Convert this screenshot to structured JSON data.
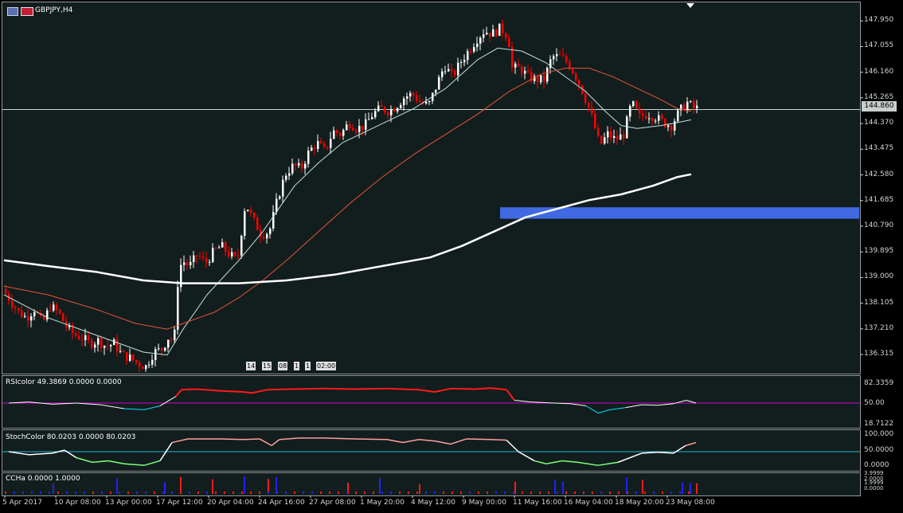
{
  "window": {
    "symbol_title": "GBPJPY,H4",
    "icon": "chart-window-icon",
    "flag_icon": "currency-flag-icon"
  },
  "main_pane": {
    "current_price": "144.860",
    "price_ticks": [
      "147.950",
      "147.055",
      "146.160",
      "145.265",
      "144.370",
      "143.475",
      "142.580",
      "141.685",
      "140.790",
      "139.895",
      "139.000",
      "138.105",
      "137.210",
      "136.315"
    ],
    "history_tags": [
      "14",
      "15",
      "08",
      "1",
      "1",
      "02:00"
    ]
  },
  "indicators": [
    {
      "label": "RSIcolor 49.3869 0.0000 0.0000",
      "ticks": [
        "82.3359",
        "50.00",
        "18.7122"
      ]
    },
    {
      "label": "StochColor 80.0203 0.0000 80.0203",
      "ticks": [
        "100.000",
        "50.0000",
        "0.0000"
      ]
    },
    {
      "label": "CCHa 0.0000 1.0000",
      "ticks": [
        "3.9999",
        "2.0000",
        "1.9999",
        "0.0000"
      ]
    }
  ],
  "time_axis": [
    "5 Apr 2017",
    "10 Apr 08:00",
    "13 Apr 00:00",
    "17 Apr 12:00",
    "20 Apr 04:00",
    "24 Apr 16:00",
    "27 Apr 08:00",
    "1 May 20:00",
    "4 May 12:00",
    "9 May 00:00",
    "11 May 16:00",
    "16 May 04:00",
    "18 May 20:00",
    "23 May 08:00"
  ],
  "colors": {
    "background": "#121e1d",
    "bull_candle": "#ffffff",
    "bear_candle": "#ff0000",
    "ma_fast": "#bfe3e0",
    "ma_mid": "#e5533a",
    "ma_slow": "#ffffff",
    "zone": "#4169e1",
    "level_line": "#c9d6d4",
    "rsi_up": "#ff1a1a",
    "rsi_mid": "#ffffff",
    "rsi_down": "#00e5ff",
    "rsi_level": "#d400d4",
    "stoch_up": "#ff9da0",
    "stoch_mid": "#ffffff",
    "stoch_down": "#7cff7c",
    "stoch_level": "#1fb6d4",
    "cc_bull": "#2222ff",
    "cc_bear": "#ff1a1a"
  },
  "chart_data": {
    "type": "candlestick",
    "symbol": "GBPJPY",
    "timeframe": "H4",
    "ylim": [
      135.9,
      148.4
    ],
    "close_path": [
      [
        0,
        138.6
      ],
      [
        10,
        138.2
      ],
      [
        20,
        137.8
      ],
      [
        30,
        137.6
      ],
      [
        40,
        137.9
      ],
      [
        50,
        137.4
      ],
      [
        60,
        138.0
      ],
      [
        70,
        137.8
      ],
      [
        80,
        137.3
      ],
      [
        90,
        137.0
      ],
      [
        100,
        136.9
      ],
      [
        110,
        136.7
      ],
      [
        120,
        136.8
      ],
      [
        130,
        136.6
      ],
      [
        140,
        136.7
      ],
      [
        150,
        136.3
      ],
      [
        160,
        136.2
      ],
      [
        170,
        136.0
      ],
      [
        180,
        135.9
      ],
      [
        190,
        136.4
      ],
      [
        200,
        136.5
      ],
      [
        210,
        137.0
      ],
      [
        215,
        136.6
      ],
      [
        220,
        138.8
      ],
      [
        225,
        139.6
      ],
      [
        235,
        139.4
      ],
      [
        245,
        139.8
      ],
      [
        255,
        139.5
      ],
      [
        265,
        139.9
      ],
      [
        275,
        140.1
      ],
      [
        285,
        139.8
      ],
      [
        295,
        139.6
      ],
      [
        305,
        141.6
      ],
      [
        315,
        141.0
      ],
      [
        325,
        140.5
      ],
      [
        335,
        140.6
      ],
      [
        345,
        141.7
      ],
      [
        355,
        142.6
      ],
      [
        365,
        142.9
      ],
      [
        375,
        142.8
      ],
      [
        385,
        143.4
      ],
      [
        395,
        143.7
      ],
      [
        405,
        143.4
      ],
      [
        415,
        144.1
      ],
      [
        425,
        144.0
      ],
      [
        435,
        144.4
      ],
      [
        445,
        144.2
      ],
      [
        455,
        144.3
      ],
      [
        465,
        144.7
      ],
      [
        475,
        144.9
      ],
      [
        485,
        144.8
      ],
      [
        495,
        145.0
      ],
      [
        505,
        145.3
      ],
      [
        515,
        145.4
      ],
      [
        525,
        145.1
      ],
      [
        535,
        145.0
      ],
      [
        545,
        145.7
      ],
      [
        555,
        146.4
      ],
      [
        565,
        146.0
      ],
      [
        575,
        146.5
      ],
      [
        585,
        146.9
      ],
      [
        595,
        147.3
      ],
      [
        605,
        147.6
      ],
      [
        615,
        147.5
      ],
      [
        625,
        147.7
      ],
      [
        635,
        147.4
      ],
      [
        640,
        146.3
      ],
      [
        650,
        146.3
      ],
      [
        660,
        146.0
      ],
      [
        670,
        145.9
      ],
      [
        680,
        145.9
      ],
      [
        690,
        146.7
      ],
      [
        700,
        146.7
      ],
      [
        710,
        146.5
      ],
      [
        720,
        146.0
      ],
      [
        730,
        145.4
      ],
      [
        740,
        144.6
      ],
      [
        750,
        143.6
      ],
      [
        760,
        144.0
      ],
      [
        770,
        143.8
      ],
      [
        780,
        144.0
      ],
      [
        790,
        145.1
      ],
      [
        800,
        144.6
      ],
      [
        810,
        144.7
      ],
      [
        820,
        144.6
      ],
      [
        830,
        144.4
      ],
      [
        840,
        144.3
      ],
      [
        850,
        144.8
      ],
      [
        860,
        145.1
      ],
      [
        868,
        144.9
      ]
    ],
    "moving_averages": [
      {
        "name": "fast",
        "points": [
          [
            5,
            138.4
          ],
          [
            60,
            137.6
          ],
          [
            120,
            137.0
          ],
          [
            180,
            136.4
          ],
          [
            210,
            136.3
          ],
          [
            230,
            137.2
          ],
          [
            260,
            138.4
          ],
          [
            300,
            139.6
          ],
          [
            330,
            140.6
          ],
          [
            370,
            142.2
          ],
          [
            400,
            143.0
          ],
          [
            430,
            143.7
          ],
          [
            460,
            144.1
          ],
          [
            490,
            144.5
          ],
          [
            520,
            144.9
          ],
          [
            560,
            145.6
          ],
          [
            600,
            146.6
          ],
          [
            625,
            147.0
          ],
          [
            655,
            146.9
          ],
          [
            685,
            146.5
          ],
          [
            710,
            146.0
          ],
          [
            735,
            145.5
          ],
          [
            760,
            144.8
          ],
          [
            780,
            144.3
          ],
          [
            800,
            144.2
          ],
          [
            830,
            144.3
          ],
          [
            850,
            144.4
          ],
          [
            868,
            144.5
          ]
        ]
      },
      {
        "name": "mid",
        "points": [
          [
            5,
            138.7
          ],
          [
            60,
            138.4
          ],
          [
            120,
            137.9
          ],
          [
            170,
            137.4
          ],
          [
            210,
            137.2
          ],
          [
            240,
            137.5
          ],
          [
            270,
            137.8
          ],
          [
            300,
            138.3
          ],
          [
            330,
            138.9
          ],
          [
            360,
            139.6
          ],
          [
            400,
            140.6
          ],
          [
            440,
            141.6
          ],
          [
            480,
            142.5
          ],
          [
            520,
            143.3
          ],
          [
            560,
            144.0
          ],
          [
            600,
            144.7
          ],
          [
            640,
            145.5
          ],
          [
            680,
            146.1
          ],
          [
            710,
            146.3
          ],
          [
            740,
            146.3
          ],
          [
            770,
            146.0
          ],
          [
            800,
            145.6
          ],
          [
            830,
            145.2
          ],
          [
            850,
            144.9
          ],
          [
            868,
            144.8
          ]
        ]
      },
      {
        "name": "slow",
        "points": [
          [
            5,
            139.6
          ],
          [
            60,
            139.4
          ],
          [
            120,
            139.2
          ],
          [
            180,
            138.9
          ],
          [
            230,
            138.8
          ],
          [
            300,
            138.8
          ],
          [
            360,
            138.9
          ],
          [
            420,
            139.1
          ],
          [
            480,
            139.4
          ],
          [
            540,
            139.7
          ],
          [
            580,
            140.1
          ],
          [
            620,
            140.6
          ],
          [
            660,
            141.1
          ],
          [
            700,
            141.4
          ],
          [
            740,
            141.7
          ],
          [
            780,
            141.9
          ],
          [
            820,
            142.2
          ],
          [
            850,
            142.5
          ],
          [
            868,
            142.6
          ]
        ]
      }
    ],
    "zone": {
      "from_x": 628,
      "low": 141.05,
      "high": 141.45
    },
    "current_level": 144.86,
    "rsi": [
      [
        5,
        50
      ],
      [
        30,
        52
      ],
      [
        60,
        48
      ],
      [
        90,
        50
      ],
      [
        120,
        47
      ],
      [
        150,
        40
      ],
      [
        175,
        38
      ],
      [
        195,
        45
      ],
      [
        215,
        62
      ],
      [
        222,
        74
      ],
      [
        240,
        75
      ],
      [
        270,
        72
      ],
      [
        300,
        70
      ],
      [
        310,
        68
      ],
      [
        330,
        74
      ],
      [
        360,
        75
      ],
      [
        400,
        76
      ],
      [
        440,
        75
      ],
      [
        480,
        76
      ],
      [
        520,
        74
      ],
      [
        540,
        70
      ],
      [
        560,
        76
      ],
      [
        590,
        75
      ],
      [
        610,
        77
      ],
      [
        630,
        74
      ],
      [
        640,
        55
      ],
      [
        660,
        52
      ],
      [
        690,
        50
      ],
      [
        710,
        49
      ],
      [
        730,
        45
      ],
      [
        745,
        32
      ],
      [
        760,
        38
      ],
      [
        780,
        42
      ],
      [
        800,
        47
      ],
      [
        820,
        46
      ],
      [
        840,
        49
      ],
      [
        856,
        55
      ],
      [
        868,
        50
      ]
    ],
    "stoch": [
      [
        5,
        50
      ],
      [
        30,
        40
      ],
      [
        60,
        45
      ],
      [
        75,
        55
      ],
      [
        90,
        30
      ],
      [
        110,
        15
      ],
      [
        130,
        20
      ],
      [
        150,
        10
      ],
      [
        175,
        5
      ],
      [
        195,
        20
      ],
      [
        210,
        80
      ],
      [
        230,
        92
      ],
      [
        270,
        92
      ],
      [
        300,
        90
      ],
      [
        320,
        92
      ],
      [
        335,
        70
      ],
      [
        345,
        90
      ],
      [
        370,
        95
      ],
      [
        400,
        95
      ],
      [
        440,
        92
      ],
      [
        480,
        90
      ],
      [
        500,
        80
      ],
      [
        520,
        90
      ],
      [
        540,
        85
      ],
      [
        560,
        75
      ],
      [
        580,
        92
      ],
      [
        610,
        90
      ],
      [
        630,
        88
      ],
      [
        645,
        50
      ],
      [
        665,
        20
      ],
      [
        680,
        10
      ],
      [
        700,
        20
      ],
      [
        720,
        15
      ],
      [
        745,
        5
      ],
      [
        770,
        15
      ],
      [
        800,
        45
      ],
      [
        820,
        48
      ],
      [
        840,
        45
      ],
      [
        855,
        70
      ],
      [
        868,
        80
      ]
    ],
    "cc_bars": [
      [
        60,
        "bull"
      ],
      [
        140,
        "bull"
      ],
      [
        200,
        "bull"
      ],
      [
        220,
        "bear"
      ],
      [
        260,
        "bear"
      ],
      [
        300,
        "bull"
      ],
      [
        330,
        "bear"
      ],
      [
        340,
        "bull"
      ],
      [
        430,
        "bear"
      ],
      [
        470,
        "bull"
      ],
      [
        520,
        "bear"
      ],
      [
        640,
        "bear"
      ],
      [
        690,
        "bull"
      ],
      [
        700,
        "bull"
      ],
      [
        780,
        "bull"
      ],
      [
        800,
        "bear"
      ],
      [
        850,
        "bull"
      ],
      [
        860,
        "bull"
      ],
      [
        868,
        "bear"
      ]
    ]
  }
}
